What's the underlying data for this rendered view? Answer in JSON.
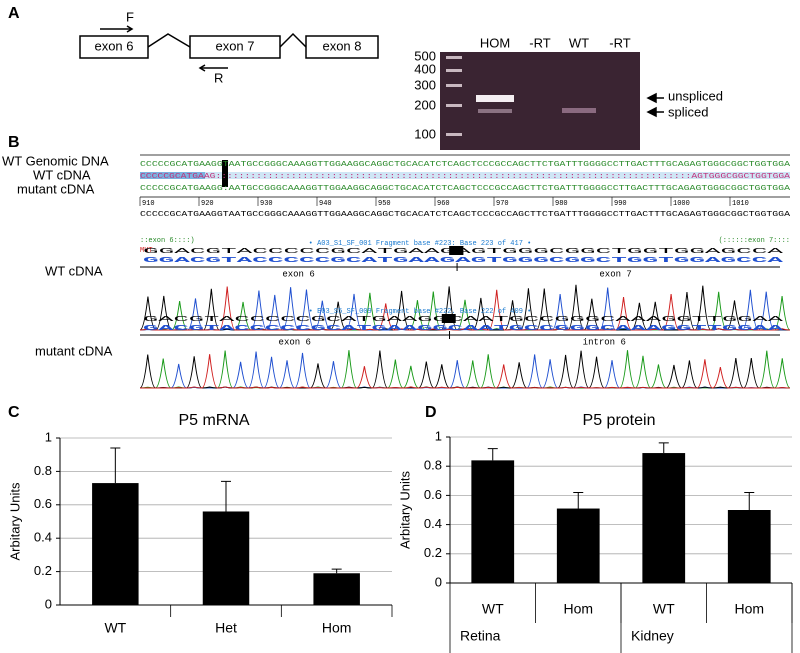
{
  "panels": {
    "a": "A",
    "b": "B",
    "c": "C",
    "d": "D"
  },
  "gene_diagram": {
    "exons": [
      "exon 6",
      "exon 7",
      "exon 8"
    ],
    "primers": [
      "F",
      "R"
    ]
  },
  "gel": {
    "lanes": [
      "HOM",
      "-RT",
      "WT",
      "-RT"
    ],
    "ladder": [
      "500",
      "400",
      "300",
      "200",
      "100"
    ],
    "bands": [
      "unspliced",
      "spliced"
    ]
  },
  "alignment": {
    "row_labels": [
      "WT Genomic DNA",
      "WT cDNA",
      "mutant cDNA"
    ],
    "rows": [
      "CCCCCGCATGAAGGTAATGCCGGGCAAAGGTTGGAAGGCAGGCTGCACATCTCAGCTCCCGCCAGCTTCTGATTTGGGGCCTTGACTTTGCAGAGTGGGCGGCTGGTGGA",
      "CCCCCGCATGAAG::::::::::::::::::::::::::::::::::::::::::::::::::::::::::::::::::::::::::::::::::AGTGGGCGGCTGGTGGA",
      "CCCCCGCATGAAGG:AATGCCGGGCAAAGGTTGGAAGGCAGGCTGCACATCTCAGCTCCCGCCAGCTTCTGATTTGGGGCCTTGACTTTGCAGAGTGGGCGGCTGGTGGA"
    ],
    "ruler": [
      "910",
      "920",
      "930",
      "940",
      "950",
      "960",
      "970",
      "980",
      "990",
      "1000",
      "1010"
    ],
    "consensus": "CCCCCGCATGAAGGTAATGCCGGGCAAAGGTTGGAAGGCAGGCTGCACATCTCAGCTCCCGCCAGCTTCTGATTTGGGGCCTTGACTTTGCAGAGTGGGCGGCTGGTGGA",
    "annotations": [
      "::exon 6::::)",
      "MUT",
      "(::::::exon 7::::"
    ]
  },
  "traces": [
    {
      "label": "WT cDNA",
      "fragment": "• A03_S1_SF_001 Fragment base #223: Base 223 of 417 •",
      "calls": "GGACGTACCCCCGCATGAAGAGTGGGCGGCTGGTGGAGCCA",
      "regions": [
        "exon 6",
        "exon 7"
      ]
    },
    {
      "label": "mutant cDNA",
      "fragment": "• E03_S5_SF_009 Fragment base #222. Base 222 of 409 •",
      "calls": "GACGTACCCCCGCATGAAGGCAATGCCGGGCAAAGGTTGGAA",
      "regions": [
        "exon 6",
        "intron 6"
      ]
    }
  ],
  "chart_data": [
    {
      "type": "bar",
      "title": "P5 mRNA",
      "y_label": "Arbitary Units",
      "categories": [
        "WT",
        "Het",
        "Hom"
      ],
      "values": [
        0.73,
        0.56,
        0.19
      ],
      "errors": [
        0.21,
        0.18,
        0.025
      ],
      "color": "#000000",
      "ylim": [
        0,
        1
      ],
      "yticks": [
        0,
        0.2,
        0.4,
        0.6,
        0.8,
        1
      ],
      "grid": true
    },
    {
      "type": "bar",
      "title": "P5 protein",
      "y_label": "Arbitary Units",
      "categories": [
        "WT",
        "Hom",
        "WT",
        "Hom"
      ],
      "groups": [
        "Retina",
        "Kidney"
      ],
      "values": [
        0.84,
        0.51,
        0.89,
        0.5
      ],
      "errors": [
        0.08,
        0.11,
        0.07,
        0.12
      ],
      "color": "#000000",
      "ylim": [
        0,
        1
      ],
      "yticks": [
        0,
        0.2,
        0.4,
        0.6,
        0.8,
        1
      ],
      "grid": true
    }
  ]
}
